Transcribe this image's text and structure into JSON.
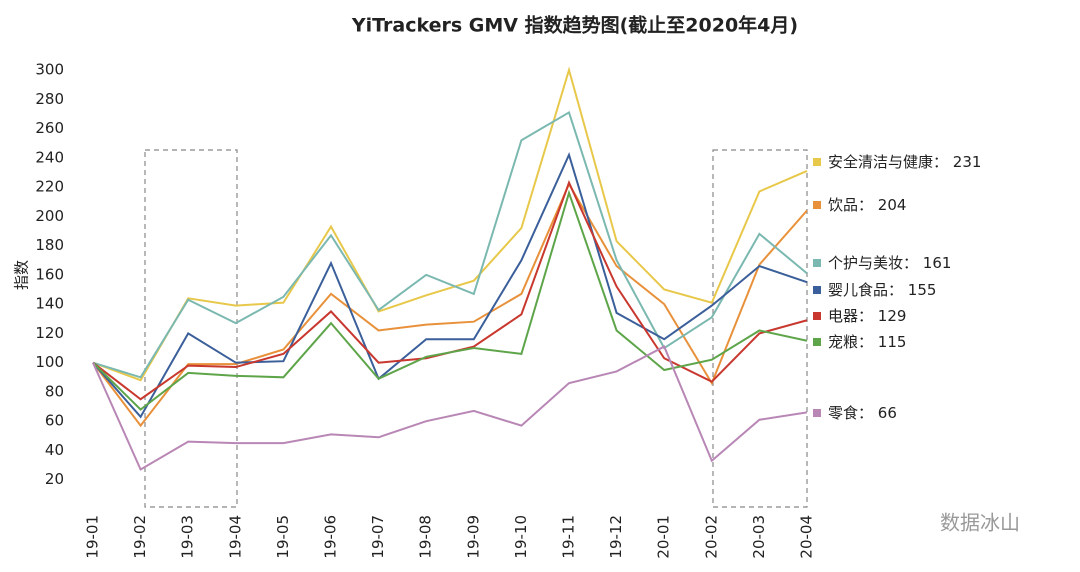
{
  "chart_data": {
    "type": "line",
    "title": "YiTrackers GMV 指数趋势图(截止至2020年4月)",
    "y_label": "指数",
    "watermark": "数据冰山",
    "categories": [
      "19-01",
      "19-02",
      "19-03",
      "19-04",
      "19-05",
      "19-06",
      "19-07",
      "19-08",
      "19-09",
      "19-10",
      "19-11",
      "19-12",
      "20-01",
      "20-02",
      "20-03",
      "20-04"
    ],
    "ylim": [
      0,
      300
    ],
    "yticks": [
      20,
      40,
      60,
      80,
      100,
      120,
      140,
      160,
      180,
      200,
      220,
      240,
      260,
      280,
      300
    ],
    "series": [
      {
        "name": "安全清洁与健康",
        "color": "#e8c84a",
        "values": [
          100,
          88,
          144,
          139,
          141,
          193,
          135,
          146,
          156,
          192,
          300,
          183,
          150,
          141,
          217,
          231
        ],
        "value_labels": [
          null,
          null,
          null,
          null,
          null,
          null,
          null,
          null,
          null,
          null,
          null,
          null,
          null,
          null,
          null,
          "： 231"
        ]
      },
      {
        "name": "饮品",
        "color": "#e8913a",
        "values": [
          100,
          57,
          99,
          99,
          109,
          147,
          122,
          126,
          128,
          147,
          222,
          166,
          140,
          86,
          167,
          204
        ],
        "value_labels": [
          null,
          null,
          null,
          null,
          null,
          null,
          null,
          null,
          null,
          null,
          null,
          null,
          null,
          null,
          null,
          "： 204"
        ]
      },
      {
        "name": "个护与美妆",
        "color": "#7ab8b0",
        "values": [
          100,
          90,
          143,
          127,
          145,
          187,
          136,
          160,
          147,
          252,
          271,
          170,
          110,
          131,
          188,
          161
        ],
        "value_labels": [
          null,
          null,
          null,
          null,
          null,
          null,
          null,
          null,
          null,
          null,
          null,
          null,
          null,
          null,
          null,
          "： 161"
        ]
      },
      {
        "name": "婴儿食品",
        "color": "#3b5f9a",
        "values": [
          100,
          63,
          120,
          100,
          101,
          168,
          89,
          116,
          116,
          170,
          242,
          134,
          116,
          139,
          166,
          155
        ],
        "value_labels": [
          null,
          null,
          null,
          null,
          null,
          null,
          null,
          null,
          null,
          null,
          null,
          null,
          null,
          null,
          null,
          "： 155"
        ]
      },
      {
        "name": "电器",
        "color": "#c8382e",
        "values": [
          100,
          75,
          98,
          97,
          106,
          135,
          100,
          103,
          111,
          133,
          223,
          152,
          103,
          87,
          120,
          129
        ],
        "value_labels": [
          null,
          null,
          null,
          null,
          null,
          null,
          null,
          null,
          null,
          null,
          null,
          null,
          null,
          null,
          null,
          "： 129"
        ]
      },
      {
        "name": "宠粮",
        "color": "#5ea54a",
        "values": [
          100,
          68,
          93,
          91,
          90,
          127,
          89,
          104,
          110,
          106,
          216,
          122,
          95,
          102,
          122,
          115
        ],
        "value_labels": [
          null,
          null,
          null,
          null,
          null,
          null,
          null,
          null,
          null,
          null,
          null,
          null,
          null,
          null,
          null,
          "： 115"
        ]
      },
      {
        "name": "零食",
        "color": "#b887b5",
        "values": [
          100,
          27,
          46,
          45,
          45,
          51,
          49,
          60,
          67,
          57,
          86,
          94,
          111,
          33,
          61,
          66
        ],
        "value_labels": [
          null,
          null,
          null,
          null,
          null,
          null,
          null,
          null,
          null,
          null,
          null,
          null,
          null,
          null,
          null,
          "： 66"
        ]
      }
    ]
  }
}
